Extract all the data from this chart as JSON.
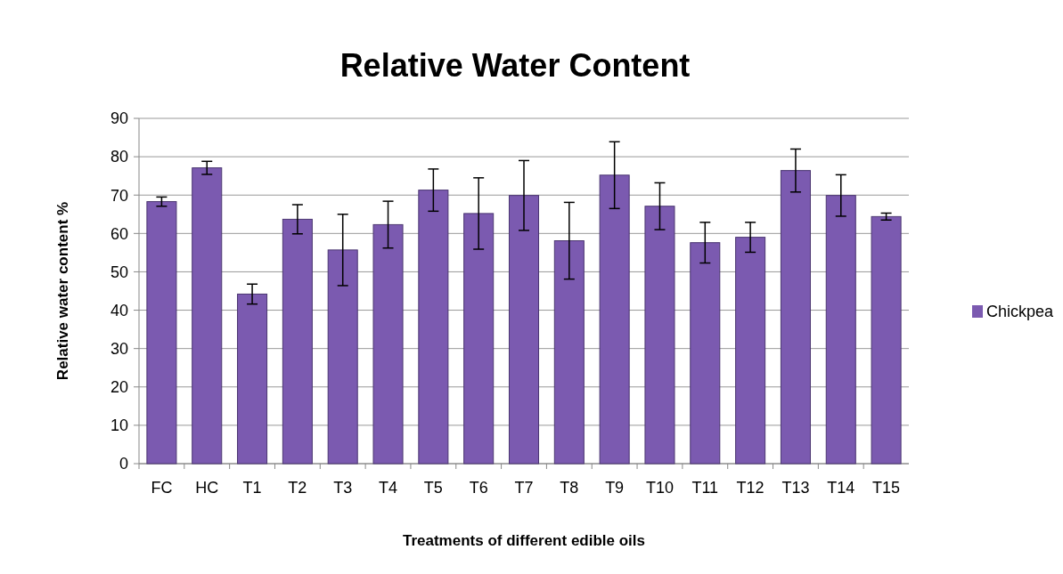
{
  "chart_data": {
    "type": "bar",
    "title": "Relative Water Content",
    "xlabel": "Treatments of different edible oils",
    "ylabel": "Relative water content  %",
    "categories": [
      "FC",
      "HC",
      "T1",
      "T2",
      "T3",
      "T4",
      "T5",
      "T6",
      "T7",
      "T8",
      "T9",
      "T10",
      "T11",
      "T12",
      "T13",
      "T14",
      "T15"
    ],
    "series": [
      {
        "name": "Chickpea",
        "color": "#7b5ab0",
        "values": [
          68.3,
          77.1,
          44.2,
          63.7,
          55.7,
          62.3,
          71.3,
          65.2,
          69.9,
          58.1,
          75.2,
          67.1,
          57.6,
          59.0,
          76.4,
          69.9,
          64.4
        ],
        "errors": [
          1.2,
          1.7,
          2.6,
          3.8,
          9.3,
          6.1,
          5.5,
          9.3,
          9.1,
          10,
          8.7,
          6.1,
          5.3,
          3.9,
          5.6,
          5.4,
          0.9
        ]
      }
    ],
    "ylim": [
      0,
      90
    ],
    "yticks": [
      0,
      10,
      20,
      30,
      40,
      50,
      60,
      70,
      80,
      90
    ],
    "grid": "y",
    "legend": "right"
  }
}
